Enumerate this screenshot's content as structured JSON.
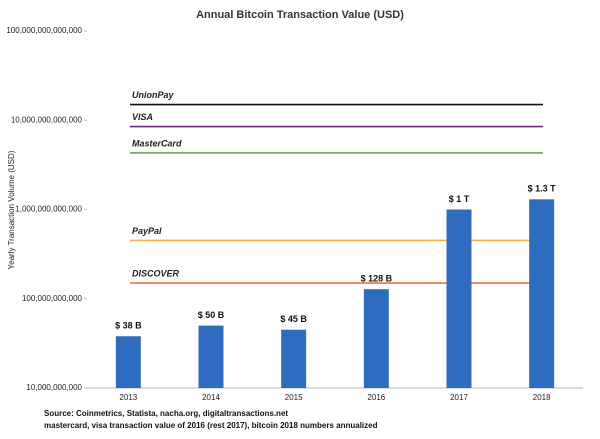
{
  "chart_data": {
    "type": "bar",
    "title": "Annual Bitcoin Transaction Value (USD)",
    "y_label": "Yearly Transaction Volume (USD)",
    "categories": [
      "2013",
      "2014",
      "2015",
      "2016",
      "2017",
      "2018"
    ],
    "values": [
      38000000000,
      50000000000,
      45000000000,
      128000000000,
      1000000000000,
      1300000000000
    ],
    "value_labels": [
      "$ 38 B",
      "$ 50 B",
      "$ 45 B",
      "$ 128 B",
      "$ 1 T",
      "$ 1.3 T"
    ],
    "color": "#2f6cbf",
    "log_scale": true,
    "ylim": [
      10000000000,
      100000000000000
    ],
    "yticks": [
      {
        "value": 10000000000,
        "label": "10,000,000,000"
      },
      {
        "value": 100000000000,
        "label": "100,000,000,000"
      },
      {
        "value": 1000000000000,
        "label": "1,000,000,000,000"
      },
      {
        "value": 10000000000000,
        "label": "10,000,000,000,000"
      },
      {
        "value": 100000000000000,
        "label": "100,000,000,000,000"
      }
    ],
    "grid": false,
    "reference_lines": [
      {
        "name": "UnionPay",
        "value": 15000000000000,
        "color": "#111111"
      },
      {
        "name": "VISA",
        "value": 8500000000000,
        "color": "#6a2c7a"
      },
      {
        "name": "MasterCard",
        "value": 4300000000000,
        "color": "#6aa84f"
      },
      {
        "name": "PayPal",
        "value": 450000000000,
        "color": "#f0b34a"
      },
      {
        "name": "DISCOVER",
        "value": 150000000000,
        "color": "#e07b45"
      }
    ],
    "notes": [
      "Source: Coinmetrics, Statista, nacha.org, digitaltransactions.net",
      "mastercard, visa transaction value of 2016 (rest 2017), bitcoin 2018 numbers annualized"
    ]
  }
}
